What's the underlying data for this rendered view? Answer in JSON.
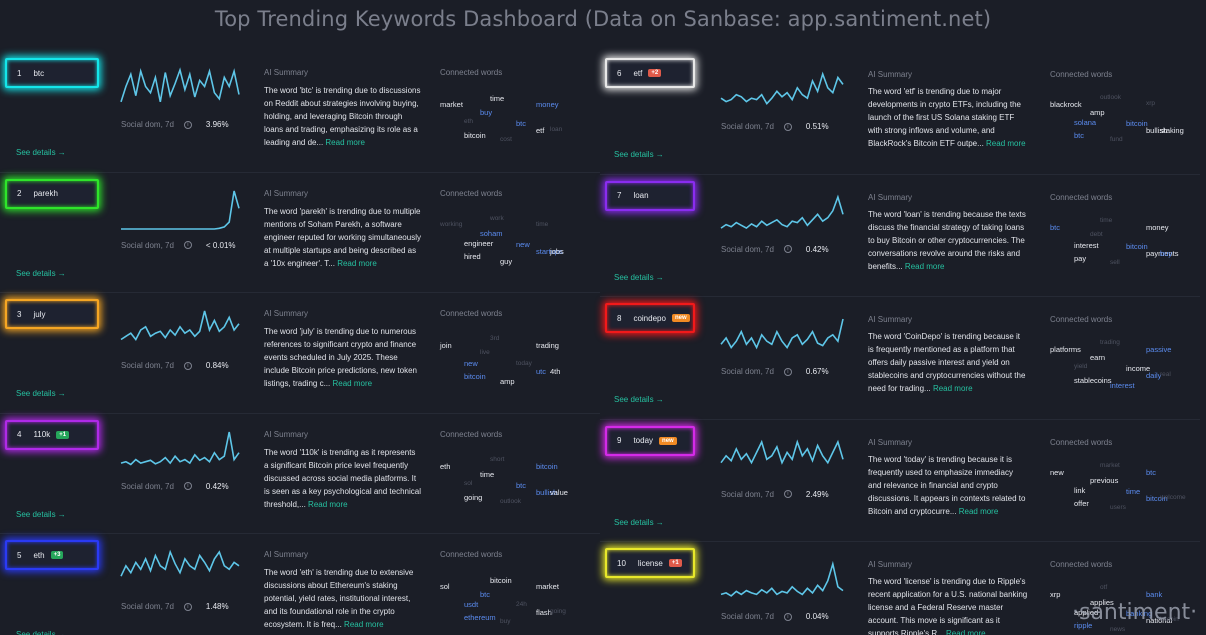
{
  "page_title": "Top Trending Keywords Dashboard (Data on Sanbase: app.santiment.net)",
  "watermark": "·santiment·",
  "labels": {
    "see_details": "See details →",
    "social_dom": "Social dom, 7d",
    "info_icon_glyph": "i",
    "ai_summary": "AI Summary",
    "connected_words": "Connected words",
    "read_more": "Read more"
  },
  "colors": {
    "cyan": "#14e6ea",
    "green": "#2ee52a",
    "orange": "#f6a623",
    "purple": "#b02ae8",
    "blue": "#2a3af5",
    "white": "#e8e8e8",
    "violet": "#8a2cf0",
    "red": "#f2191a",
    "magenta": "#d42ae8",
    "yellow": "#e8e82a"
  },
  "left": [
    {
      "rank": "1",
      "word": "btc",
      "badge": null,
      "badge_type": null,
      "glow": "cyan",
      "pct": "3.96%",
      "spark": [
        10,
        35,
        55,
        20,
        60,
        35,
        25,
        50,
        10,
        58,
        20,
        40,
        62,
        30,
        55,
        18,
        45,
        35,
        60,
        25,
        15,
        50,
        35,
        60,
        22
      ],
      "summary": "The word 'btc' is trending due to discussions on Reddit about strategies involving buying, holding, and leveraging Bitcoin through loans and trading, emphasizing its role as a leading and de...",
      "words": [
        {
          "t": "time",
          "c": "white"
        },
        {
          "t": "market",
          "c": "white"
        },
        {
          "t": "money",
          "c": "blue"
        },
        {
          "t": "buy",
          "c": "blue"
        },
        {
          "t": "eth",
          "c": "dim"
        },
        {
          "t": "btc",
          "c": "blue"
        },
        {
          "t": "etf",
          "c": "white"
        },
        {
          "t": "bitcoin",
          "c": "white"
        },
        {
          "t": "cost",
          "c": "dim"
        },
        {
          "t": "loan",
          "c": "dim"
        }
      ]
    },
    {
      "rank": "2",
      "word": "parekh",
      "badge": null,
      "badge_type": null,
      "glow": "green",
      "pct": "< 0.01%",
      "spark": [
        0,
        0,
        0,
        0,
        0,
        0,
        0,
        0,
        0,
        0,
        0,
        0,
        0,
        0,
        0,
        0,
        0,
        0,
        0,
        0,
        1,
        3,
        10,
        55,
        30
      ],
      "summary": "The word 'parekh' is trending due to multiple mentions of Soham Parekh, a software engineer reputed for working simultaneously at multiple startups and being described as a '10x engineer'. T...",
      "words": [
        {
          "t": "work",
          "c": "dim"
        },
        {
          "t": "working",
          "c": "dim"
        },
        {
          "t": "time",
          "c": "dim"
        },
        {
          "t": "soham",
          "c": "blue"
        },
        {
          "t": "engineer",
          "c": "white"
        },
        {
          "t": "new",
          "c": "blue"
        },
        {
          "t": "startups",
          "c": "blue"
        },
        {
          "t": "hired",
          "c": "white"
        },
        {
          "t": "guy",
          "c": "white"
        },
        {
          "t": "jobs",
          "c": "white"
        }
      ]
    },
    {
      "rank": "3",
      "word": "july",
      "badge": null,
      "badge_type": null,
      "glow": "orange",
      "pct": "0.84%",
      "spark": [
        15,
        20,
        25,
        15,
        30,
        35,
        20,
        25,
        28,
        18,
        30,
        22,
        35,
        25,
        30,
        20,
        28,
        60,
        30,
        45,
        28,
        35,
        50,
        30,
        40
      ],
      "summary": "The word 'july' is trending due to numerous references to significant crypto and finance events scheduled in July 2025. These include Bitcoin price predictions, new token listings, trading c...",
      "words": [
        {
          "t": "3rd",
          "c": "dim"
        },
        {
          "t": "join",
          "c": "white"
        },
        {
          "t": "trading",
          "c": "white"
        },
        {
          "t": "live",
          "c": "dim"
        },
        {
          "t": "new",
          "c": "blue"
        },
        {
          "t": "today",
          "c": "dim"
        },
        {
          "t": "utc",
          "c": "blue"
        },
        {
          "t": "bitcoin",
          "c": "blue"
        },
        {
          "t": "amp",
          "c": "white"
        },
        {
          "t": "4th",
          "c": "white"
        }
      ]
    },
    {
      "rank": "4",
      "word": "110k",
      "badge": "+1",
      "badge_type": "up",
      "glow": "purple",
      "pct": "0.42%",
      "spark": [
        10,
        12,
        8,
        15,
        10,
        12,
        14,
        9,
        12,
        18,
        10,
        20,
        12,
        15,
        10,
        22,
        14,
        18,
        12,
        25,
        15,
        20,
        55,
        15,
        25
      ],
      "summary": "The word '110k' is trending as it represents a significant Bitcoin price level frequently discussed across social media platforms. It is seen as a key psychological and technical threshold,...",
      "words": [
        {
          "t": "short",
          "c": "dim"
        },
        {
          "t": "eth",
          "c": "white"
        },
        {
          "t": "bitcoin",
          "c": "blue"
        },
        {
          "t": "time",
          "c": "white"
        },
        {
          "t": "sol",
          "c": "dim"
        },
        {
          "t": "btc",
          "c": "blue"
        },
        {
          "t": "bullish",
          "c": "blue"
        },
        {
          "t": "going",
          "c": "white"
        },
        {
          "t": "outlook",
          "c": "dim"
        },
        {
          "t": "value",
          "c": "white"
        }
      ]
    },
    {
      "rank": "5",
      "word": "eth",
      "badge": "+3",
      "badge_type": "up",
      "glow": "blue",
      "pct": "1.48%",
      "spark": [
        20,
        35,
        25,
        40,
        30,
        45,
        28,
        50,
        35,
        30,
        55,
        38,
        25,
        45,
        35,
        30,
        50,
        40,
        28,
        45,
        55,
        35,
        30,
        40,
        35
      ],
      "summary": "The word 'eth' is trending due to extensive discussions about Ethereum's staking potential, yield rates, institutional interest, and its foundational role in the crypto ecosystem. It is freq...",
      "words": [
        {
          "t": "bitcoin",
          "c": "white"
        },
        {
          "t": "sol",
          "c": "white"
        },
        {
          "t": "market",
          "c": "white"
        },
        {
          "t": "btc",
          "c": "blue"
        },
        {
          "t": "usdt",
          "c": "blue"
        },
        {
          "t": "24h",
          "c": "dim"
        },
        {
          "t": "flash",
          "c": "white"
        },
        {
          "t": "ethereum",
          "c": "blue"
        },
        {
          "t": "buy",
          "c": "dim"
        },
        {
          "t": "going",
          "c": "dim"
        }
      ]
    }
  ],
  "right": [
    {
      "rank": "6",
      "word": "etf",
      "badge": "+2",
      "badge_type": "down",
      "glow": "white",
      "pct": "0.51%",
      "spark": [
        20,
        15,
        18,
        25,
        22,
        15,
        20,
        18,
        25,
        12,
        20,
        30,
        22,
        28,
        18,
        35,
        25,
        20,
        45,
        30,
        55,
        35,
        28,
        50,
        40
      ],
      "summary": "The word 'etf' is trending due to major developments in crypto ETFs, including the launch of the first US Solana staking ETF with strong inflows and volume, and BlackRock's Bitcoin ETF outpe...",
      "words": [
        {
          "t": "outlook",
          "c": "dim"
        },
        {
          "t": "blackrock",
          "c": "white"
        },
        {
          "t": "xrp",
          "c": "dim"
        },
        {
          "t": "amp",
          "c": "white"
        },
        {
          "t": "solana",
          "c": "blue"
        },
        {
          "t": "bitcoin",
          "c": "blue"
        },
        {
          "t": "bullish",
          "c": "white"
        },
        {
          "t": "btc",
          "c": "blue"
        },
        {
          "t": "fund",
          "c": "dim"
        },
        {
          "t": "staking",
          "c": "white"
        }
      ]
    },
    {
      "rank": "7",
      "word": "loan",
      "badge": null,
      "badge_type": null,
      "glow": "violet",
      "pct": "0.42%",
      "spark": [
        10,
        15,
        12,
        18,
        14,
        10,
        16,
        12,
        20,
        14,
        18,
        22,
        15,
        12,
        20,
        18,
        25,
        14,
        22,
        30,
        20,
        25,
        35,
        55,
        30
      ],
      "summary": "The word 'loan' is trending because the texts discuss the financial strategy of taking loans to buy Bitcoin or other cryptocurrencies. The conversations revolve around the risks and benefits...",
      "words": [
        {
          "t": "time",
          "c": "dim"
        },
        {
          "t": "btc",
          "c": "blue"
        },
        {
          "t": "money",
          "c": "white"
        },
        {
          "t": "debt",
          "c": "dim"
        },
        {
          "t": "interest",
          "c": "white"
        },
        {
          "t": "bitcoin",
          "c": "blue"
        },
        {
          "t": "payments",
          "c": "white"
        },
        {
          "t": "pay",
          "c": "white"
        },
        {
          "t": "sell",
          "c": "dim"
        },
        {
          "t": "buy",
          "c": "blue"
        }
      ]
    },
    {
      "rank": "8",
      "word": "coindepo",
      "badge": "new",
      "badge_type": "new",
      "glow": "red",
      "pct": "0.67%",
      "spark": [
        20,
        30,
        15,
        25,
        40,
        20,
        30,
        15,
        35,
        25,
        20,
        40,
        25,
        15,
        30,
        35,
        20,
        28,
        40,
        22,
        18,
        30,
        35,
        25,
        60
      ],
      "summary": "The word 'CoinDepo' is trending because it is frequently mentioned as a platform that offers daily passive interest and yield on stablecoins and cryptocurrencies without the need for trading...",
      "words": [
        {
          "t": "trading",
          "c": "dim"
        },
        {
          "t": "platforms",
          "c": "white"
        },
        {
          "t": "passive",
          "c": "blue"
        },
        {
          "t": "earn",
          "c": "white"
        },
        {
          "t": "yield",
          "c": "dim"
        },
        {
          "t": "income",
          "c": "white"
        },
        {
          "t": "daily",
          "c": "blue"
        },
        {
          "t": "stablecoins",
          "c": "white"
        },
        {
          "t": "interest",
          "c": "blue"
        },
        {
          "t": "real",
          "c": "dim"
        }
      ]
    },
    {
      "rank": "9",
      "word": "today",
      "badge": "new",
      "badge_type": "new",
      "glow": "magenta",
      "pct": "2.49%",
      "spark": [
        25,
        35,
        28,
        45,
        30,
        38,
        25,
        40,
        55,
        30,
        35,
        48,
        25,
        40,
        30,
        55,
        35,
        45,
        28,
        50,
        35,
        25,
        40,
        55,
        30
      ],
      "summary": "The word 'today' is trending because it is frequently used to emphasize immediacy and relevance in financial and crypto discussions. It appears in contexts related to Bitcoin and cryptocurre...",
      "words": [
        {
          "t": "market",
          "c": "dim"
        },
        {
          "t": "new",
          "c": "white"
        },
        {
          "t": "btc",
          "c": "blue"
        },
        {
          "t": "previous",
          "c": "white"
        },
        {
          "t": "link",
          "c": "white"
        },
        {
          "t": "time",
          "c": "blue"
        },
        {
          "t": "bitcoin",
          "c": "blue"
        },
        {
          "t": "offer",
          "c": "white"
        },
        {
          "t": "users",
          "c": "dim"
        },
        {
          "t": "welcome",
          "c": "dim"
        }
      ]
    },
    {
      "rank": "10",
      "word": "license",
      "badge": "+1",
      "badge_type": "down",
      "glow": "yellow",
      "pct": "0.04%",
      "spark": [
        10,
        12,
        8,
        14,
        10,
        15,
        12,
        10,
        16,
        12,
        18,
        10,
        14,
        12,
        20,
        14,
        10,
        18,
        12,
        22,
        15,
        28,
        50,
        20,
        15
      ],
      "summary": "The word 'license' is trending due to Ripple's recent application for a U.S. national banking license and a Federal Reserve master account. This move is significant as it supports Ripple's R...",
      "words": [
        {
          "t": "otf",
          "c": "dim"
        },
        {
          "t": "xrp",
          "c": "white"
        },
        {
          "t": "bank",
          "c": "blue"
        },
        {
          "t": "applies",
          "c": "white"
        },
        {
          "t": "applied",
          "c": "white"
        },
        {
          "t": "banking",
          "c": "blue"
        },
        {
          "t": "national",
          "c": "white"
        },
        {
          "t": "ripple",
          "c": "blue"
        },
        {
          "t": "news",
          "c": "dim"
        },
        {
          "t": "bitcoin",
          "c": "dim"
        }
      ]
    }
  ]
}
